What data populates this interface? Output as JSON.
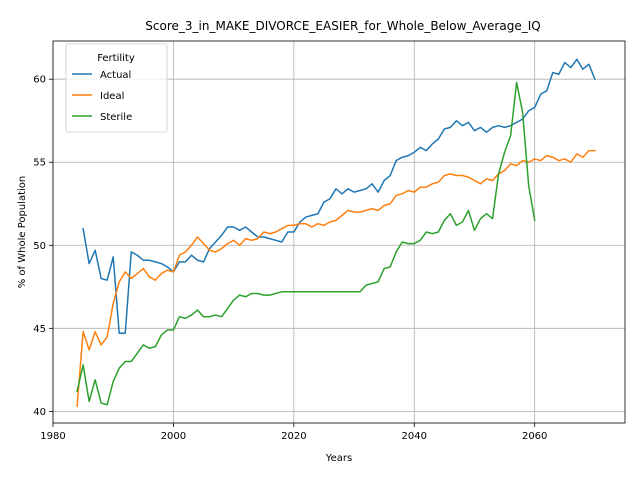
{
  "chart_data": {
    "type": "line",
    "title": "Score_3_in_MAKE_DIVORCE_EASIER_for_Whole_Below_Average_IQ",
    "xlabel": "Years",
    "ylabel": "% of Whole Population",
    "xlim": [
      1980,
      2075
    ],
    "ylim": [
      39.3,
      62.3
    ],
    "xticks": [
      1980,
      2000,
      2020,
      2040,
      2060
    ],
    "yticks": [
      40,
      45,
      50,
      55,
      60
    ],
    "grid": true,
    "legend": {
      "title": "Fertility",
      "placement": "top-left"
    },
    "series": [
      {
        "name": "Actual",
        "color": "#1f77b4",
        "points": [
          [
            1985,
            51.0
          ],
          [
            1986,
            48.9
          ],
          [
            1987,
            49.7
          ],
          [
            1988,
            48.0
          ],
          [
            1989,
            47.9
          ],
          [
            1990,
            49.3
          ],
          [
            1991,
            44.7
          ],
          [
            1992,
            44.7
          ],
          [
            1993,
            49.6
          ],
          [
            1994,
            49.4
          ],
          [
            1995,
            49.1
          ],
          [
            1996,
            49.1
          ],
          [
            1997,
            49.0
          ],
          [
            1998,
            48.9
          ],
          [
            1999,
            48.7
          ],
          [
            2000,
            48.4
          ],
          [
            2001,
            49.0
          ],
          [
            2002,
            49.0
          ],
          [
            2003,
            49.4
          ],
          [
            2004,
            49.1
          ],
          [
            2005,
            49.0
          ],
          [
            2006,
            49.8
          ],
          [
            2007,
            50.2
          ],
          [
            2008,
            50.6
          ],
          [
            2009,
            51.1
          ],
          [
            2010,
            51.1
          ],
          [
            2011,
            50.9
          ],
          [
            2012,
            51.1
          ],
          [
            2013,
            50.8
          ],
          [
            2014,
            50.5
          ],
          [
            2015,
            50.5
          ],
          [
            2016,
            50.4
          ],
          [
            2017,
            50.3
          ],
          [
            2018,
            50.2
          ],
          [
            2019,
            50.8
          ],
          [
            2020,
            50.8
          ],
          [
            2021,
            51.4
          ],
          [
            2022,
            51.7
          ],
          [
            2023,
            51.8
          ],
          [
            2024,
            51.9
          ],
          [
            2025,
            52.6
          ],
          [
            2026,
            52.8
          ],
          [
            2027,
            53.4
          ],
          [
            2028,
            53.1
          ],
          [
            2029,
            53.4
          ],
          [
            2030,
            53.2
          ],
          [
            2031,
            53.3
          ],
          [
            2032,
            53.4
          ],
          [
            2033,
            53.7
          ],
          [
            2034,
            53.2
          ],
          [
            2035,
            53.9
          ],
          [
            2036,
            54.2
          ],
          [
            2037,
            55.1
          ],
          [
            2038,
            55.3
          ],
          [
            2039,
            55.4
          ],
          [
            2040,
            55.6
          ],
          [
            2041,
            55.9
          ],
          [
            2042,
            55.7
          ],
          [
            2043,
            56.1
          ],
          [
            2044,
            56.4
          ],
          [
            2045,
            57.0
          ],
          [
            2046,
            57.1
          ],
          [
            2047,
            57.5
          ],
          [
            2048,
            57.2
          ],
          [
            2049,
            57.4
          ],
          [
            2050,
            56.9
          ],
          [
            2051,
            57.1
          ],
          [
            2052,
            56.8
          ],
          [
            2053,
            57.1
          ],
          [
            2054,
            57.2
          ],
          [
            2055,
            57.1
          ],
          [
            2056,
            57.2
          ],
          [
            2057,
            57.4
          ],
          [
            2058,
            57.6
          ],
          [
            2059,
            58.1
          ],
          [
            2060,
            58.3
          ],
          [
            2061,
            59.1
          ],
          [
            2062,
            59.3
          ],
          [
            2063,
            60.4
          ],
          [
            2064,
            60.3
          ],
          [
            2065,
            61.0
          ],
          [
            2066,
            60.7
          ],
          [
            2067,
            61.2
          ],
          [
            2068,
            60.6
          ],
          [
            2069,
            60.9
          ],
          [
            2070,
            60.0
          ]
        ]
      },
      {
        "name": "Ideal",
        "color": "#ff7f0e",
        "points": [
          [
            1984,
            40.3
          ],
          [
            1985,
            44.8
          ],
          [
            1986,
            43.7
          ],
          [
            1987,
            44.8
          ],
          [
            1988,
            44.0
          ],
          [
            1989,
            44.5
          ],
          [
            1990,
            46.5
          ],
          [
            1991,
            47.8
          ],
          [
            1992,
            48.4
          ],
          [
            1993,
            48.0
          ],
          [
            1994,
            48.3
          ],
          [
            1995,
            48.6
          ],
          [
            1996,
            48.1
          ],
          [
            1997,
            47.9
          ],
          [
            1998,
            48.3
          ],
          [
            1999,
            48.5
          ],
          [
            2000,
            48.4
          ],
          [
            2001,
            49.4
          ],
          [
            2002,
            49.6
          ],
          [
            2003,
            50.0
          ],
          [
            2004,
            50.5
          ],
          [
            2005,
            50.1
          ],
          [
            2006,
            49.7
          ],
          [
            2007,
            49.6
          ],
          [
            2008,
            49.8
          ],
          [
            2009,
            50.1
          ],
          [
            2010,
            50.3
          ],
          [
            2011,
            50.0
          ],
          [
            2012,
            50.4
          ],
          [
            2013,
            50.3
          ],
          [
            2014,
            50.4
          ],
          [
            2015,
            50.8
          ],
          [
            2016,
            50.7
          ],
          [
            2017,
            50.8
          ],
          [
            2018,
            51.0
          ],
          [
            2019,
            51.2
          ],
          [
            2020,
            51.2
          ],
          [
            2021,
            51.3
          ],
          [
            2022,
            51.3
          ],
          [
            2023,
            51.1
          ],
          [
            2024,
            51.3
          ],
          [
            2025,
            51.2
          ],
          [
            2026,
            51.4
          ],
          [
            2027,
            51.5
          ],
          [
            2028,
            51.8
          ],
          [
            2029,
            52.1
          ],
          [
            2030,
            52.0
          ],
          [
            2031,
            52.0
          ],
          [
            2032,
            52.1
          ],
          [
            2033,
            52.2
          ],
          [
            2034,
            52.1
          ],
          [
            2035,
            52.4
          ],
          [
            2036,
            52.5
          ],
          [
            2037,
            53.0
          ],
          [
            2038,
            53.1
          ],
          [
            2039,
            53.3
          ],
          [
            2040,
            53.2
          ],
          [
            2041,
            53.5
          ],
          [
            2042,
            53.5
          ],
          [
            2043,
            53.7
          ],
          [
            2044,
            53.8
          ],
          [
            2045,
            54.2
          ],
          [
            2046,
            54.3
          ],
          [
            2047,
            54.2
          ],
          [
            2048,
            54.2
          ],
          [
            2049,
            54.1
          ],
          [
            2050,
            53.9
          ],
          [
            2051,
            53.7
          ],
          [
            2052,
            54.0
          ],
          [
            2053,
            53.9
          ],
          [
            2054,
            54.3
          ],
          [
            2055,
            54.5
          ],
          [
            2056,
            54.9
          ],
          [
            2057,
            54.8
          ],
          [
            2058,
            55.1
          ],
          [
            2059,
            55.0
          ],
          [
            2060,
            55.2
          ],
          [
            2061,
            55.1
          ],
          [
            2062,
            55.4
          ],
          [
            2063,
            55.3
          ],
          [
            2064,
            55.1
          ],
          [
            2065,
            55.2
          ],
          [
            2066,
            55.0
          ],
          [
            2067,
            55.5
          ],
          [
            2068,
            55.3
          ],
          [
            2069,
            55.7
          ],
          [
            2070,
            55.7
          ]
        ]
      },
      {
        "name": "Sterile",
        "color": "#2ca02c",
        "points": [
          [
            1984,
            41.2
          ],
          [
            1985,
            42.8
          ],
          [
            1986,
            40.6
          ],
          [
            1987,
            41.9
          ],
          [
            1988,
            40.5
          ],
          [
            1989,
            40.4
          ],
          [
            1990,
            41.8
          ],
          [
            1991,
            42.6
          ],
          [
            1992,
            43.0
          ],
          [
            1993,
            43.0
          ],
          [
            1994,
            43.5
          ],
          [
            1995,
            44.0
          ],
          [
            1996,
            43.8
          ],
          [
            1997,
            43.9
          ],
          [
            1998,
            44.6
          ],
          [
            1999,
            44.9
          ],
          [
            2000,
            44.9
          ],
          [
            2001,
            45.7
          ],
          [
            2002,
            45.6
          ],
          [
            2003,
            45.8
          ],
          [
            2004,
            46.1
          ],
          [
            2005,
            45.7
          ],
          [
            2006,
            45.7
          ],
          [
            2007,
            45.8
          ],
          [
            2008,
            45.7
          ],
          [
            2009,
            46.2
          ],
          [
            2010,
            46.7
          ],
          [
            2011,
            47.0
          ],
          [
            2012,
            46.9
          ],
          [
            2013,
            47.1
          ],
          [
            2014,
            47.1
          ],
          [
            2015,
            47.0
          ],
          [
            2016,
            47.0
          ],
          [
            2017,
            47.1
          ],
          [
            2018,
            47.2
          ],
          [
            2019,
            47.2
          ],
          [
            2020,
            47.2
          ],
          [
            2021,
            47.2
          ],
          [
            2022,
            47.2
          ],
          [
            2023,
            47.2
          ],
          [
            2024,
            47.2
          ],
          [
            2025,
            47.2
          ],
          [
            2026,
            47.2
          ],
          [
            2027,
            47.2
          ],
          [
            2028,
            47.2
          ],
          [
            2029,
            47.2
          ],
          [
            2030,
            47.2
          ],
          [
            2031,
            47.2
          ],
          [
            2032,
            47.6
          ],
          [
            2033,
            47.7
          ],
          [
            2034,
            47.8
          ],
          [
            2035,
            48.6
          ],
          [
            2036,
            48.7
          ],
          [
            2037,
            49.6
          ],
          [
            2038,
            50.2
          ],
          [
            2039,
            50.1
          ],
          [
            2040,
            50.1
          ],
          [
            2041,
            50.3
          ],
          [
            2042,
            50.8
          ],
          [
            2043,
            50.7
          ],
          [
            2044,
            50.8
          ],
          [
            2045,
            51.5
          ],
          [
            2046,
            51.9
          ],
          [
            2047,
            51.2
          ],
          [
            2048,
            51.4
          ],
          [
            2049,
            52.1
          ],
          [
            2050,
            50.9
          ],
          [
            2051,
            51.6
          ],
          [
            2052,
            51.9
          ],
          [
            2053,
            51.6
          ],
          [
            2054,
            54.3
          ],
          [
            2055,
            55.6
          ],
          [
            2056,
            56.6
          ],
          [
            2057,
            59.8
          ],
          [
            2058,
            58.0
          ],
          [
            2059,
            53.6
          ],
          [
            2060,
            51.5
          ]
        ]
      }
    ]
  }
}
